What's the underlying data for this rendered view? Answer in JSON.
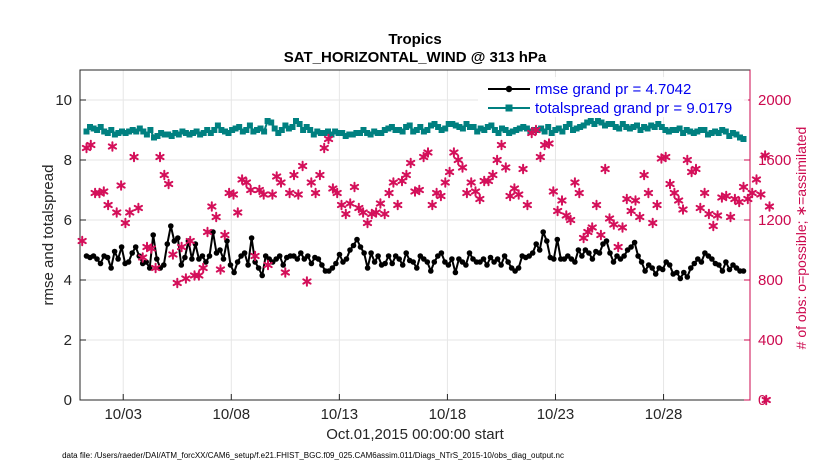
{
  "chart_data": {
    "type": "line",
    "title": "Tropics",
    "subtitle": "SAT_HORIZONTAL_WIND @ 313 hPa",
    "xlabel": "Oct.01,2015 00:00:00 start",
    "ylabel_left": "rmse and totalspread",
    "ylabel_right": "# of obs: o=possible; ∗=assimilated",
    "footer": "data file: /Users/raeder/DAI/ATM_forcXX/CAM6_setup/f.e21.FHIST_BGC.f09_025.CAM6assim.011/Diags_NTrS_2015-10/obs_diag_output.nc",
    "x_tick_labels": [
      "10/03",
      "10/08",
      "10/13",
      "10/18",
      "10/23",
      "10/28"
    ],
    "x_tick_days": [
      2.5,
      7.5,
      12.5,
      17.5,
      22.5,
      27.5
    ],
    "xlim_days": [
      0.5,
      31.5
    ],
    "ylim_left": [
      0,
      11
    ],
    "yticks_left": [
      "0",
      "2",
      "4",
      "6",
      "8",
      "10"
    ],
    "ylim_right": [
      0,
      2200
    ],
    "yticks_right": [
      "0",
      "400",
      "800",
      "1200",
      "1600",
      "2000"
    ],
    "grid": true,
    "legend_position": "top-right",
    "colors": {
      "rmse": "#000000",
      "spread": "#008080",
      "obs": "#d4105a",
      "axis_right": "#cc0a4f",
      "legend_text": "#0000f0",
      "grid": "#e6e6e6"
    },
    "series": [
      {
        "name": "rmse grand pr = 4.7042",
        "axis": "left",
        "marker": "filled-circle",
        "values": [
          4.8,
          4.75,
          4.8,
          4.7,
          4.55,
          4.8,
          4.75,
          4.4,
          4.95,
          4.7,
          5.1,
          4.55,
          4.6,
          4.9,
          5.1,
          4.8,
          4.55,
          4.6,
          4.4,
          5.5,
          4.7,
          4.4,
          4.5,
          5.2,
          5.8,
          5.3,
          5.4,
          4.5,
          4.75,
          5.3,
          4.7,
          5.2,
          4.7,
          4.8,
          4.6,
          4.8,
          5.6,
          4.9,
          5.0,
          4.7,
          5.3,
          4.5,
          4.25,
          4.6,
          4.8,
          4.9,
          4.5,
          5.4,
          4.6,
          4.4,
          4.15,
          4.8,
          4.7,
          4.6,
          4.7,
          4.8,
          4.5,
          4.75,
          4.8,
          4.8,
          4.7,
          4.9,
          4.7,
          4.8,
          4.55,
          4.75,
          4.7,
          4.5,
          4.3,
          4.3,
          4.4,
          4.55,
          4.85,
          4.6,
          4.7,
          5.0,
          5.15,
          5.35,
          5.1,
          4.9,
          4.4,
          4.9,
          4.6,
          4.8,
          4.5,
          4.55,
          4.8,
          4.55,
          4.8,
          4.7,
          4.5,
          4.9,
          4.65,
          4.6,
          4.4,
          4.8,
          4.7,
          4.6,
          4.3,
          4.6,
          4.8,
          4.9,
          4.6,
          4.5,
          4.7,
          4.25,
          4.7,
          4.6,
          4.5,
          4.9,
          4.7,
          4.6,
          4.6,
          4.7,
          4.5,
          4.75,
          4.6,
          4.7,
          4.5,
          4.8,
          4.6,
          4.4,
          4.3,
          4.4,
          4.8,
          4.75,
          4.8,
          4.9,
          5.2,
          5.0,
          5.6,
          5.3,
          4.75,
          4.7,
          5.35,
          4.7,
          4.7,
          4.8,
          4.7,
          4.6,
          5.0,
          4.8,
          5.0,
          4.9,
          4.7,
          4.95,
          4.9,
          5.2,
          5.3,
          4.9,
          4.6,
          4.8,
          4.7,
          4.8,
          5.0,
          5.1,
          5.25,
          4.8,
          4.6,
          4.3,
          4.5,
          4.4,
          4.2,
          4.4,
          4.35,
          4.6,
          4.5,
          4.2,
          4.25,
          4.05,
          4.25,
          4.1,
          4.4,
          4.55,
          4.7,
          4.6,
          4.9,
          4.8,
          4.7,
          4.55,
          4.5,
          4.3,
          4.6,
          4.35,
          4.5,
          4.4,
          4.3,
          4.3
        ]
      },
      {
        "name": "totalspread grand pr = 9.0179",
        "axis": "left",
        "marker": "filled-square",
        "values": [
          8.95,
          9.1,
          9.05,
          9.0,
          9.1,
          8.95,
          8.9,
          9.0,
          8.85,
          8.9,
          8.95,
          8.9,
          8.95,
          9.0,
          8.95,
          9.05,
          8.95,
          8.85,
          9.0,
          8.75,
          8.8,
          8.9,
          8.85,
          8.85,
          8.8,
          8.9,
          8.85,
          8.95,
          8.9,
          8.85,
          8.9,
          8.95,
          8.85,
          8.9,
          9.0,
          8.9,
          9.0,
          9.15,
          9.0,
          8.95,
          8.9,
          9.0,
          9.05,
          9.1,
          8.95,
          9.0,
          9.15,
          8.95,
          9.0,
          9.05,
          8.95,
          9.3,
          9.25,
          9.05,
          8.9,
          9.0,
          9.15,
          9.05,
          9.1,
          9.3,
          9.2,
          9.0,
          9.1,
          9.0,
          8.85,
          8.95,
          8.9,
          8.9,
          8.95,
          8.85,
          8.95,
          8.9,
          8.9,
          8.8,
          8.85,
          8.85,
          8.9,
          8.9,
          9.0,
          8.9,
          8.85,
          8.95,
          8.9,
          8.9,
          9.0,
          9.05,
          9.1,
          9.0,
          9.0,
          8.95,
          9.1,
          9.15,
          8.95,
          9.0,
          9.1,
          8.95,
          9.0,
          9.15,
          9.2,
          9.1,
          9.0,
          9.05,
          9.2,
          9.2,
          9.15,
          9.1,
          9.05,
          9.2,
          9.1,
          9.1,
          8.95,
          9.05,
          9.0,
          9.1,
          9.15,
          9.0,
          8.9,
          9.05,
          9.0,
          8.9,
          8.95,
          9.0,
          9.05,
          9.1,
          9.05,
          8.95,
          9.0,
          9.0,
          9.05,
          8.95,
          9.1,
          8.9,
          9.0,
          9.05,
          8.95,
          9.1,
          9.2,
          9.0,
          9.05,
          9.1,
          9.15,
          9.25,
          9.3,
          9.2,
          9.3,
          9.25,
          9.15,
          9.2,
          9.2,
          9.1,
          9.05,
          9.2,
          9.1,
          9.05,
          9.1,
          9.15,
          9.0,
          9.1,
          9.05,
          9.15,
          9.1,
          9.2,
          9.1,
          9.0,
          8.95,
          9.0,
          9.0,
          9.05,
          8.9,
          9.0,
          8.95,
          8.9,
          8.95,
          9.0,
          9.0,
          8.85,
          8.9,
          8.95,
          8.9,
          9.0,
          8.95,
          8.8,
          8.9,
          8.85,
          8.75,
          8.7
        ]
      },
      {
        "name": "# of obs assimilated",
        "axis": "right",
        "marker": "asterisk",
        "points": [
          [
            0.6,
            1060
          ],
          [
            0.8,
            1680
          ],
          [
            1.0,
            1700
          ],
          [
            1.2,
            1380
          ],
          [
            1.4,
            1380
          ],
          [
            1.6,
            1390
          ],
          [
            1.8,
            1300
          ],
          [
            2.0,
            1690
          ],
          [
            2.2,
            1250
          ],
          [
            2.4,
            1430
          ],
          [
            2.6,
            1180
          ],
          [
            2.8,
            1250
          ],
          [
            3.0,
            1620
          ],
          [
            3.2,
            1280
          ],
          [
            3.4,
            950
          ],
          [
            3.6,
            1020
          ],
          [
            3.8,
            1010
          ],
          [
            4.0,
            880
          ],
          [
            4.2,
            1620
          ],
          [
            4.4,
            1500
          ],
          [
            4.6,
            1440
          ],
          [
            4.8,
            970
          ],
          [
            5.0,
            780
          ],
          [
            5.2,
            1020
          ],
          [
            5.4,
            810
          ],
          [
            5.6,
            1060
          ],
          [
            5.8,
            830
          ],
          [
            6.0,
            830
          ],
          [
            6.2,
            880
          ],
          [
            6.4,
            1120
          ],
          [
            6.6,
            1290
          ],
          [
            6.8,
            1220
          ],
          [
            7.0,
            870
          ],
          [
            7.2,
            1100
          ],
          [
            7.4,
            1380
          ],
          [
            7.6,
            1370
          ],
          [
            7.8,
            1250
          ],
          [
            8.0,
            1470
          ],
          [
            8.2,
            1450
          ],
          [
            8.4,
            1400
          ],
          [
            8.6,
            960
          ],
          [
            8.8,
            1400
          ],
          [
            9.0,
            1370
          ],
          [
            9.2,
            900
          ],
          [
            9.4,
            1370
          ],
          [
            9.6,
            1490
          ],
          [
            9.8,
            1450
          ],
          [
            10.0,
            850
          ],
          [
            10.2,
            1380
          ],
          [
            10.4,
            1500
          ],
          [
            10.6,
            1370
          ],
          [
            10.8,
            1560
          ],
          [
            11.0,
            790
          ],
          [
            11.2,
            1450
          ],
          [
            11.4,
            1380
          ],
          [
            11.6,
            1500
          ],
          [
            11.8,
            1680
          ],
          [
            12.0,
            1740
          ],
          [
            12.2,
            1410
          ],
          [
            12.4,
            1380
          ],
          [
            12.6,
            1300
          ],
          [
            12.8,
            1240
          ],
          [
            13.0,
            1310
          ],
          [
            13.2,
            1420
          ],
          [
            13.4,
            1280
          ],
          [
            13.6,
            1250
          ],
          [
            13.8,
            1180
          ],
          [
            14.0,
            1240
          ],
          [
            14.2,
            1250
          ],
          [
            14.4,
            1310
          ],
          [
            14.6,
            1240
          ],
          [
            14.8,
            1380
          ],
          [
            15.0,
            1450
          ],
          [
            15.2,
            1300
          ],
          [
            15.4,
            1460
          ],
          [
            15.6,
            1500
          ],
          [
            15.8,
            1580
          ],
          [
            16.0,
            1390
          ],
          [
            16.2,
            1400
          ],
          [
            16.4,
            1620
          ],
          [
            16.6,
            1650
          ],
          [
            16.8,
            1300
          ],
          [
            17.0,
            1380
          ],
          [
            17.2,
            1360
          ],
          [
            17.4,
            1450
          ],
          [
            17.6,
            1520
          ],
          [
            17.8,
            1650
          ],
          [
            18.0,
            1600
          ],
          [
            18.2,
            1550
          ],
          [
            18.4,
            1380
          ],
          [
            18.6,
            1450
          ],
          [
            18.8,
            1390
          ],
          [
            19.0,
            1340
          ],
          [
            19.2,
            1460
          ],
          [
            19.4,
            1460
          ],
          [
            19.6,
            1500
          ],
          [
            19.8,
            1600
          ],
          [
            20.0,
            1700
          ],
          [
            20.2,
            1550
          ],
          [
            20.4,
            1360
          ],
          [
            20.6,
            1410
          ],
          [
            20.8,
            1370
          ],
          [
            21.0,
            1540
          ],
          [
            21.2,
            1300
          ],
          [
            21.4,
            1780
          ],
          [
            21.6,
            1800
          ],
          [
            21.8,
            1620
          ],
          [
            22.0,
            1700
          ],
          [
            22.2,
            1710
          ],
          [
            22.4,
            1390
          ],
          [
            22.6,
            1260
          ],
          [
            22.8,
            1330
          ],
          [
            23.0,
            1230
          ],
          [
            23.2,
            1200
          ],
          [
            23.4,
            1450
          ],
          [
            23.6,
            1380
          ],
          [
            23.8,
            1080
          ],
          [
            24.0,
            1120
          ],
          [
            24.2,
            1150
          ],
          [
            24.4,
            1300
          ],
          [
            24.6,
            1100
          ],
          [
            24.8,
            1540
          ],
          [
            25.0,
            1210
          ],
          [
            25.2,
            1170
          ],
          [
            25.4,
            1020
          ],
          [
            25.6,
            1150
          ],
          [
            25.8,
            1340
          ],
          [
            26.0,
            1260
          ],
          [
            26.2,
            1330
          ],
          [
            26.4,
            1220
          ],
          [
            26.6,
            1500
          ],
          [
            26.8,
            1380
          ],
          [
            27.0,
            1180
          ],
          [
            27.2,
            1300
          ],
          [
            27.4,
            1610
          ],
          [
            27.6,
            1620
          ],
          [
            27.8,
            1440
          ],
          [
            28.0,
            1380
          ],
          [
            28.2,
            1330
          ],
          [
            28.4,
            1270
          ],
          [
            28.6,
            1600
          ],
          [
            28.8,
            1520
          ],
          [
            29.0,
            1540
          ],
          [
            29.2,
            1280
          ],
          [
            29.4,
            1380
          ],
          [
            29.6,
            1240
          ],
          [
            29.8,
            1160
          ],
          [
            30.0,
            1230
          ],
          [
            30.2,
            1350
          ],
          [
            30.4,
            1360
          ],
          [
            30.6,
            1220
          ],
          [
            30.8,
            1340
          ],
          [
            31.0,
            1320
          ],
          [
            31.2,
            1420
          ],
          [
            31.4,
            1340
          ],
          [
            31.6,
            1380
          ],
          [
            31.8,
            1470
          ],
          [
            32.0,
            1370
          ],
          [
            32.2,
            1630
          ],
          [
            32.4,
            1290
          ]
        ]
      }
    ],
    "annotations": [
      {
        "text": "0",
        "x_day": 32.25,
        "value": 0,
        "axis": "right",
        "marker": "asterisk"
      }
    ]
  }
}
